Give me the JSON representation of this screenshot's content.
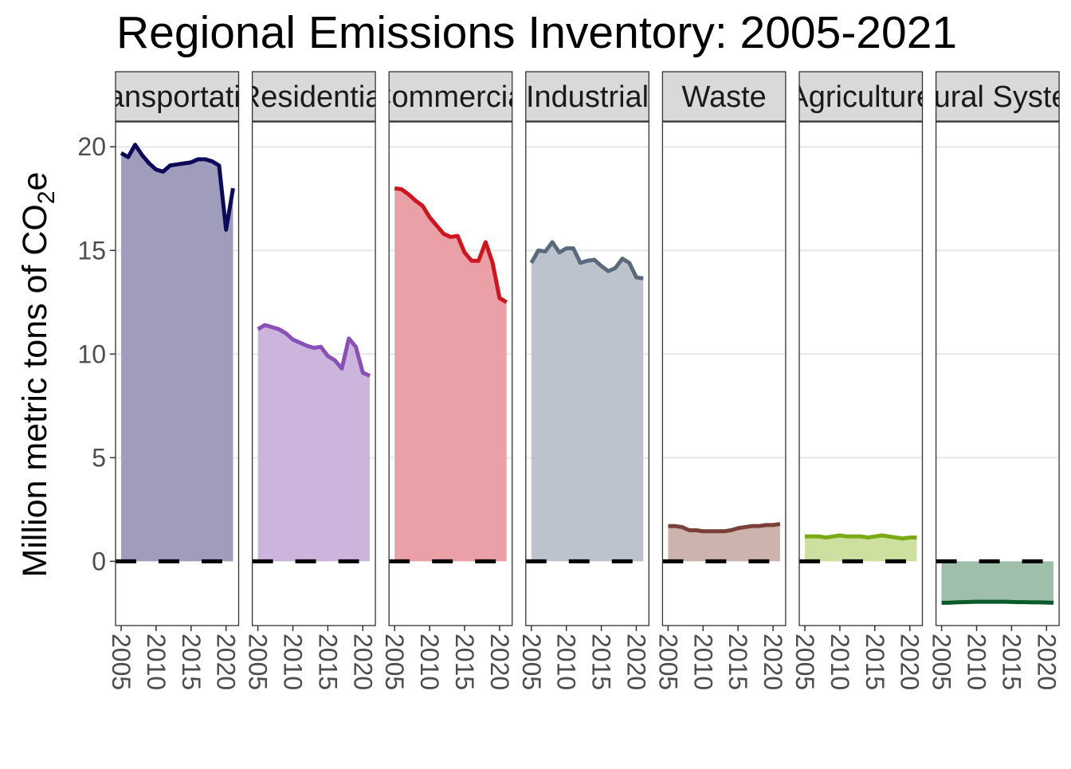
{
  "chart_data": {
    "type": "area",
    "title": "Regional Emissions Inventory: 2005-2021",
    "ylabel": "Million metric tons of CO",
    "ylabel_sub": "2",
    "ylabel_suffix": "e",
    "xlabel": "",
    "ylim": [
      -3.1,
      21.2
    ],
    "xlim": [
      2004.2,
      2021.8
    ],
    "y_ticks": [
      0,
      5,
      10,
      15,
      20
    ],
    "x_ticks": [
      2005,
      2010,
      2015,
      2020
    ],
    "grid": "horizontal major",
    "reference_line": {
      "y": 0,
      "style": "dashed"
    },
    "x": [
      2005,
      2006,
      2007,
      2008,
      2009,
      2010,
      2011,
      2012,
      2013,
      2014,
      2015,
      2016,
      2017,
      2018,
      2019,
      2020,
      2021
    ],
    "panels": [
      {
        "strip": "Transportation",
        "line_color": "#0d0a5a",
        "fill_color": "#a09cbc",
        "values": [
          19.7,
          19.5,
          20.1,
          19.6,
          19.2,
          18.9,
          18.8,
          19.1,
          19.15,
          19.2,
          19.25,
          19.4,
          19.4,
          19.3,
          19.1,
          16.0,
          18.0
        ]
      },
      {
        "strip": "Residential",
        "line_color": "#8a50b8",
        "fill_color": "#cbb5dd",
        "values": [
          11.2,
          11.4,
          11.3,
          11.2,
          11.0,
          10.7,
          10.55,
          10.4,
          10.3,
          10.35,
          9.9,
          9.7,
          9.3,
          10.75,
          10.35,
          9.1,
          8.95
        ]
      },
      {
        "strip": "Commercial",
        "line_color": "#d0151f",
        "fill_color": "#eaa0a6",
        "values": [
          18.0,
          17.95,
          17.7,
          17.4,
          17.15,
          16.6,
          16.2,
          15.8,
          15.65,
          15.7,
          14.9,
          14.5,
          14.5,
          15.4,
          14.4,
          12.7,
          12.5
        ]
      },
      {
        "strip": "Industrial",
        "line_color": "#5a6a7c",
        "fill_color": "#bcc3cc",
        "values": [
          14.4,
          15.0,
          14.95,
          15.4,
          14.9,
          15.1,
          15.1,
          14.4,
          14.5,
          14.55,
          14.25,
          14.0,
          14.15,
          14.6,
          14.4,
          13.7,
          13.65
        ]
      },
      {
        "strip": "Waste",
        "line_color": "#7a4037",
        "fill_color": "#ccb3ae",
        "values": [
          1.7,
          1.7,
          1.65,
          1.5,
          1.5,
          1.45,
          1.45,
          1.45,
          1.45,
          1.5,
          1.6,
          1.65,
          1.7,
          1.7,
          1.75,
          1.75,
          1.8
        ]
      },
      {
        "strip": "Agriculture",
        "line_color": "#7aaa14",
        "fill_color": "#cde0a0",
        "values": [
          1.2,
          1.2,
          1.2,
          1.15,
          1.2,
          1.25,
          1.2,
          1.2,
          1.2,
          1.15,
          1.2,
          1.25,
          1.2,
          1.15,
          1.1,
          1.15,
          1.15
        ]
      },
      {
        "strip": "Natural Systems",
        "line_color": "#0a5a2a",
        "fill_color": "#9fbfaa",
        "values": [
          -2.0,
          -2.0,
          -1.98,
          -1.97,
          -1.96,
          -1.95,
          -1.95,
          -1.95,
          -1.95,
          -1.95,
          -1.96,
          -1.97,
          -1.97,
          -1.98,
          -1.98,
          -1.99,
          -2.0
        ]
      }
    ]
  }
}
